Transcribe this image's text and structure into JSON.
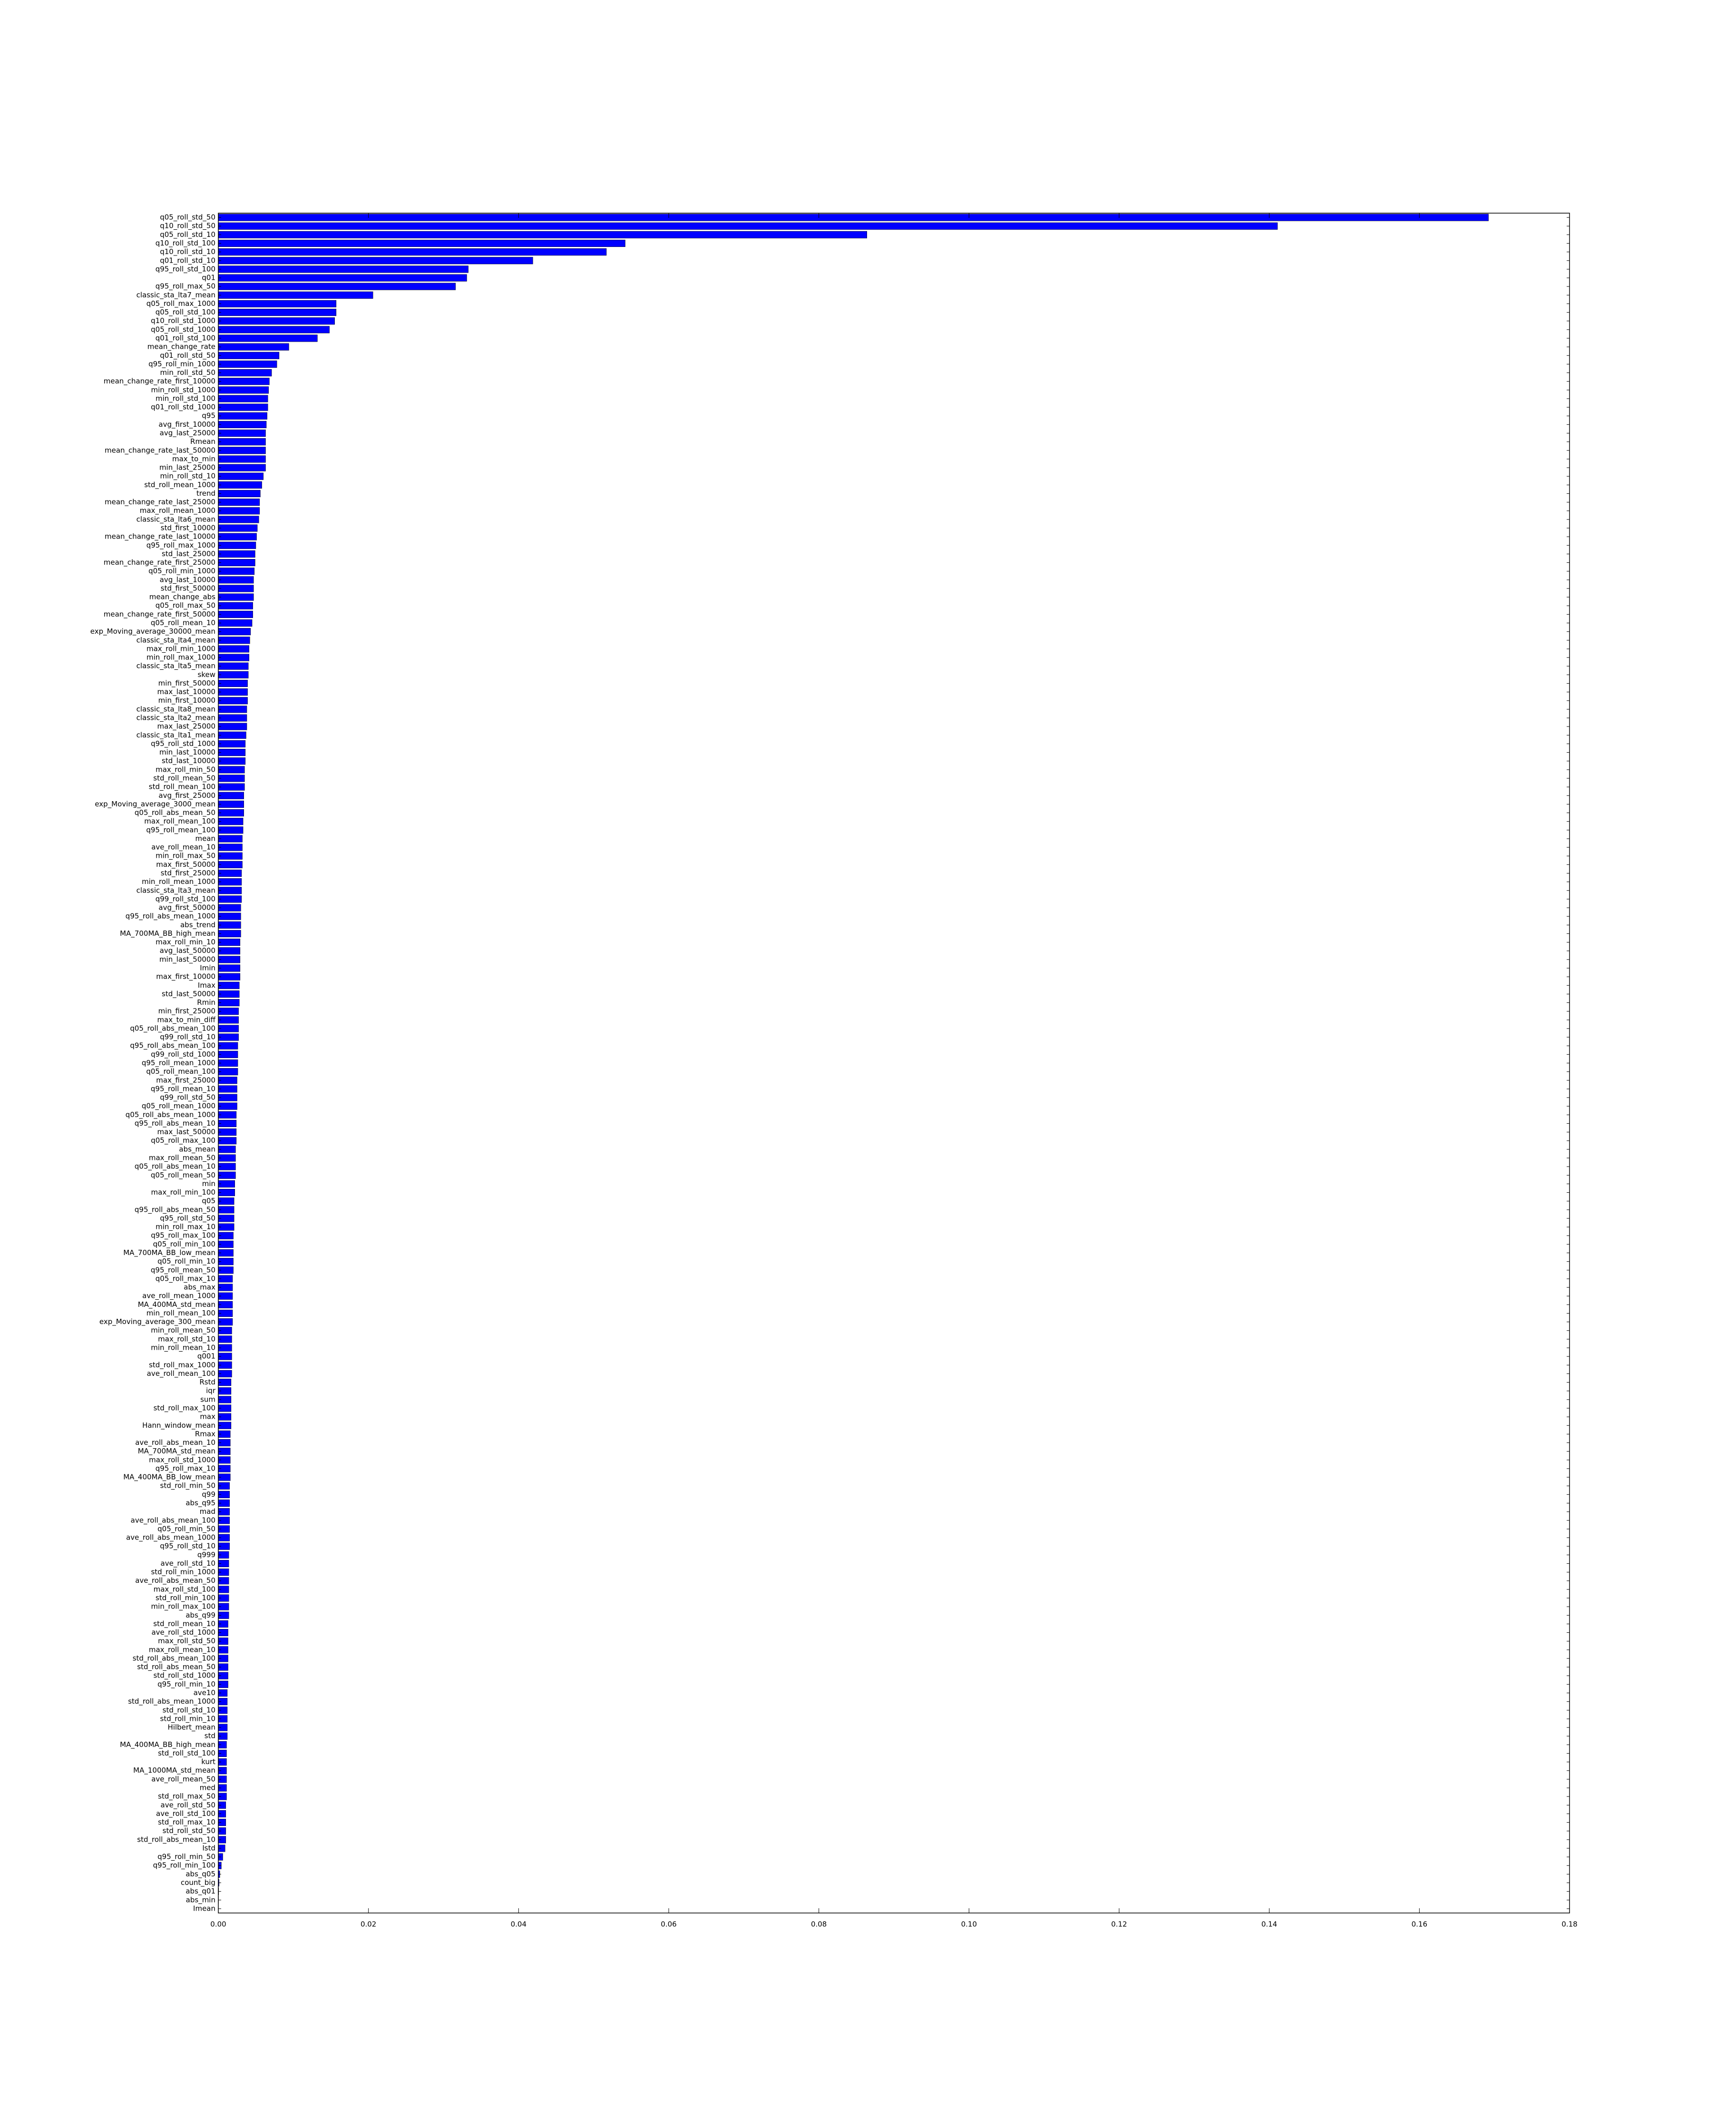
{
  "chart_data": {
    "type": "barh",
    "color": "#0000ff",
    "edge_color": "#000000",
    "categories": [
      "q05_roll_std_50",
      "q10_roll_std_50",
      "q05_roll_std_10",
      "q10_roll_std_100",
      "q10_roll_std_10",
      "q01_roll_std_10",
      "q95_roll_std_100",
      "q01",
      "q95_roll_max_50",
      "classic_sta_lta7_mean",
      "q05_roll_max_1000",
      "q05_roll_std_100",
      "q10_roll_std_1000",
      "q05_roll_std_1000",
      "q01_roll_std_100",
      "mean_change_rate",
      "q01_roll_std_50",
      "q95_roll_min_1000",
      "min_roll_std_50",
      "mean_change_rate_first_10000",
      "min_roll_std_1000",
      "min_roll_std_100",
      "q01_roll_std_1000",
      "q95",
      "avg_first_10000",
      "avg_last_25000",
      "Rmean",
      "mean_change_rate_last_50000",
      "max_to_min",
      "min_last_25000",
      "min_roll_std_10",
      "std_roll_mean_1000",
      "trend",
      "mean_change_rate_last_25000",
      "max_roll_mean_1000",
      "classic_sta_lta6_mean",
      "std_first_10000",
      "mean_change_rate_last_10000",
      "q95_roll_max_1000",
      "std_last_25000",
      "mean_change_rate_first_25000",
      "q05_roll_min_1000",
      "avg_last_10000",
      "std_first_50000",
      "mean_change_abs",
      "q05_roll_max_50",
      "mean_change_rate_first_50000",
      "q05_roll_mean_10",
      "exp_Moving_average_30000_mean",
      "classic_sta_lta4_mean",
      "max_roll_min_1000",
      "min_roll_max_1000",
      "classic_sta_lta5_mean",
      "skew",
      "min_first_50000",
      "max_last_10000",
      "min_first_10000",
      "classic_sta_lta8_mean",
      "classic_sta_lta2_mean",
      "max_last_25000",
      "classic_sta_lta1_mean",
      "q95_roll_std_1000",
      "min_last_10000",
      "std_last_10000",
      "max_roll_min_50",
      "std_roll_mean_50",
      "std_roll_mean_100",
      "avg_first_25000",
      "exp_Moving_average_3000_mean",
      "q05_roll_abs_mean_50",
      "max_roll_mean_100",
      "q95_roll_mean_100",
      "mean",
      "ave_roll_mean_10",
      "min_roll_max_50",
      "max_first_50000",
      "std_first_25000",
      "min_roll_mean_1000",
      "classic_sta_lta3_mean",
      "q99_roll_std_100",
      "avg_first_50000",
      "q95_roll_abs_mean_1000",
      "abs_trend",
      "MA_700MA_BB_high_mean",
      "max_roll_min_10",
      "avg_last_50000",
      "min_last_50000",
      "Imin",
      "max_first_10000",
      "Imax",
      "std_last_50000",
      "Rmin",
      "min_first_25000",
      "max_to_min_diff",
      "q05_roll_abs_mean_100",
      "q99_roll_std_10",
      "q95_roll_abs_mean_100",
      "q99_roll_std_1000",
      "q95_roll_mean_1000",
      "q05_roll_mean_100",
      "max_first_25000",
      "q95_roll_mean_10",
      "q99_roll_std_50",
      "q05_roll_mean_1000",
      "q05_roll_abs_mean_1000",
      "q95_roll_abs_mean_10",
      "max_last_50000",
      "q05_roll_max_100",
      "abs_mean",
      "max_roll_mean_50",
      "q05_roll_abs_mean_10",
      "q05_roll_mean_50",
      "min",
      "max_roll_min_100",
      "q05",
      "q95_roll_abs_mean_50",
      "q95_roll_std_50",
      "min_roll_max_10",
      "q95_roll_max_100",
      "q05_roll_min_100",
      "MA_700MA_BB_low_mean",
      "q05_roll_min_10",
      "q95_roll_mean_50",
      "q05_roll_max_10",
      "abs_max",
      "ave_roll_mean_1000",
      "MA_400MA_std_mean",
      "min_roll_mean_100",
      "exp_Moving_average_300_mean",
      "min_roll_mean_50",
      "max_roll_std_10",
      "min_roll_mean_10",
      "q001",
      "std_roll_max_1000",
      "ave_roll_mean_100",
      "Rstd",
      "iqr",
      "sum",
      "std_roll_max_100",
      "max",
      "Hann_window_mean",
      "Rmax",
      "ave_roll_abs_mean_10",
      "MA_700MA_std_mean",
      "max_roll_std_1000",
      "q95_roll_max_10",
      "MA_400MA_BB_low_mean",
      "std_roll_min_50",
      "q99",
      "abs_q95",
      "mad",
      "ave_roll_abs_mean_100",
      "q05_roll_min_50",
      "ave_roll_abs_mean_1000",
      "q95_roll_std_10",
      "q999",
      "ave_roll_std_10",
      "std_roll_min_1000",
      "ave_roll_abs_mean_50",
      "max_roll_std_100",
      "std_roll_min_100",
      "min_roll_max_100",
      "abs_q99",
      "std_roll_mean_10",
      "ave_roll_std_1000",
      "max_roll_std_50",
      "max_roll_mean_10",
      "std_roll_abs_mean_100",
      "std_roll_abs_mean_50",
      "std_roll_std_1000",
      "q95_roll_min_10",
      "ave10",
      "std_roll_abs_mean_1000",
      "std_roll_std_10",
      "std_roll_min_10",
      "Hilbert_mean",
      "std",
      "MA_400MA_BB_high_mean",
      "std_roll_std_100",
      "kurt",
      "MA_1000MA_std_mean",
      "ave_roll_mean_50",
      "med",
      "std_roll_max_50",
      "ave_roll_std_50",
      "ave_roll_std_100",
      "std_roll_max_10",
      "std_roll_std_50",
      "std_roll_abs_mean_10",
      "Istd",
      "q95_roll_min_50",
      "q95_roll_min_100",
      "abs_q05",
      "count_big",
      "abs_q01",
      "abs_min",
      "Imean"
    ],
    "values": [
      0.1692,
      0.1411,
      0.0864,
      0.0542,
      0.0517,
      0.0419,
      0.0333,
      0.0331,
      0.0316,
      0.0206,
      0.0157,
      0.0157,
      0.0155,
      0.0148,
      0.0132,
      0.0094,
      0.0081,
      0.0078,
      0.0071,
      0.0068,
      0.0067,
      0.0066,
      0.0066,
      0.0065,
      0.0064,
      0.0063,
      0.0063,
      0.0063,
      0.0063,
      0.0063,
      0.006,
      0.0058,
      0.0056,
      0.0055,
      0.0055,
      0.0054,
      0.0052,
      0.0051,
      0.005,
      0.0049,
      0.0049,
      0.0048,
      0.0047,
      0.0047,
      0.0047,
      0.0046,
      0.0046,
      0.0045,
      0.0043,
      0.0042,
      0.0041,
      0.0041,
      0.004,
      0.004,
      0.0039,
      0.0039,
      0.0039,
      0.0038,
      0.0038,
      0.0038,
      0.0037,
      0.0036,
      0.0036,
      0.0036,
      0.0035,
      0.0035,
      0.0035,
      0.0034,
      0.0034,
      0.0034,
      0.0033,
      0.0033,
      0.0032,
      0.0032,
      0.0032,
      0.0032,
      0.0031,
      0.0031,
      0.0031,
      0.0031,
      0.003,
      0.003,
      0.003,
      0.003,
      0.0029,
      0.0029,
      0.0029,
      0.0029,
      0.0029,
      0.0028,
      0.0028,
      0.0028,
      0.0027,
      0.0027,
      0.0027,
      0.0027,
      0.0026,
      0.0026,
      0.0026,
      0.0026,
      0.0025,
      0.0025,
      0.0025,
      0.0025,
      0.0024,
      0.0024,
      0.0024,
      0.0024,
      0.0023,
      0.0023,
      0.0023,
      0.0023,
      0.0022,
      0.0022,
      0.0021,
      0.0021,
      0.0021,
      0.0021,
      0.002,
      0.002,
      0.002,
      0.002,
      0.002,
      0.0019,
      0.0019,
      0.0019,
      0.0019,
      0.0019,
      0.0019,
      0.0018,
      0.0018,
      0.0018,
      0.0018,
      0.0018,
      0.0018,
      0.0017,
      0.0017,
      0.0017,
      0.0017,
      0.0017,
      0.0017,
      0.0016,
      0.0016,
      0.0016,
      0.0016,
      0.0016,
      0.0016,
      0.0015,
      0.0015,
      0.0015,
      0.0015,
      0.0015,
      0.0015,
      0.0015,
      0.0015,
      0.0014,
      0.0014,
      0.0014,
      0.0014,
      0.0014,
      0.0014,
      0.0014,
      0.0014,
      0.0013,
      0.0013,
      0.0013,
      0.0013,
      0.0013,
      0.0013,
      0.0013,
      0.0013,
      0.0012,
      0.0012,
      0.0012,
      0.0012,
      0.0012,
      0.0012,
      0.0011,
      0.0011,
      0.0011,
      0.0011,
      0.0011,
      0.0011,
      0.0011,
      0.001,
      0.001,
      0.001,
      0.001,
      0.001,
      0.0009,
      0.0006,
      0.0004,
      0.0002,
      0.0001,
      5e-05,
      2e-05,
      0
    ],
    "xlim": [
      0,
      0.18
    ],
    "xticks": [
      {
        "value": 0,
        "label": "0.00"
      },
      {
        "value": 0.02,
        "label": "0.02"
      },
      {
        "value": 0.04,
        "label": "0.04"
      },
      {
        "value": 0.06,
        "label": "0.06"
      },
      {
        "value": 0.08,
        "label": "0.08"
      },
      {
        "value": 0.1,
        "label": "0.10"
      },
      {
        "value": 0.12,
        "label": "0.12"
      },
      {
        "value": 0.14,
        "label": "0.14"
      },
      {
        "value": 0.16,
        "label": "0.16"
      },
      {
        "value": 0.18,
        "label": "0.18"
      }
    ],
    "grid": false
  }
}
